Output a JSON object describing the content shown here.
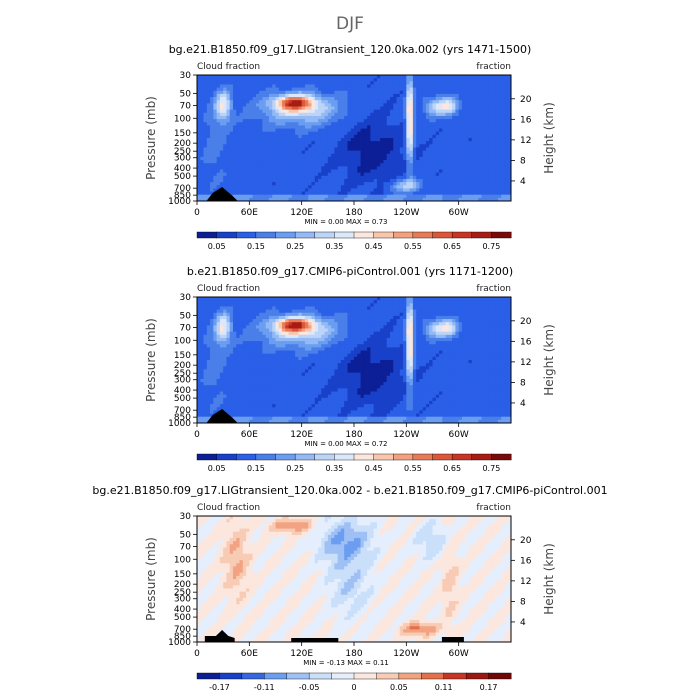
{
  "figure_title": "DJF",
  "chart_data": [
    {
      "type": "heatmap",
      "title": "bg.e21.B1850.f09_g17.LIGtransient_120.0ka.002 (yrs 1471-1500)",
      "left_label": "Cloud fraction",
      "right_label": "fraction",
      "ylabel": "Pressure (mb)",
      "ylabel_right": "Height (km)",
      "x_ticks": [
        "0",
        "60E",
        "120E",
        "180",
        "120W",
        "60W"
      ],
      "y_ticks": [
        "30",
        "50",
        "70",
        "100",
        "150",
        "200",
        "250",
        "300",
        "400",
        "500",
        "700",
        "850",
        "1000"
      ],
      "y_ticks_right": [
        "20",
        "16",
        "12",
        "8",
        "4"
      ],
      "stats": "MIN =   0.00  MAX =   0.73",
      "colorbar_labels": [
        "0.05",
        "0.15",
        "0.25",
        "0.35",
        "0.45",
        "0.55",
        "0.65",
        "0.75"
      ],
      "colorbar_colors": [
        "#0d1f96",
        "#1840c8",
        "#2a5fe8",
        "#4a7fea",
        "#6b9df0",
        "#93baf5",
        "#bcd4f8",
        "#dbe8fb",
        "#fde6dc",
        "#f9c5ad",
        "#f2a07f",
        "#e97a57",
        "#dd5637",
        "#c93523",
        "#a81c14",
        "#7a0a0a"
      ],
      "min": 0.0,
      "max": 0.73
    },
    {
      "type": "heatmap",
      "title": "b.e21.B1850.f09_g17.CMIP6-piControl.001 (yrs 1171-1200)",
      "left_label": "Cloud fraction",
      "right_label": "fraction",
      "ylabel": "Pressure (mb)",
      "ylabel_right": "Height (km)",
      "x_ticks": [
        "0",
        "60E",
        "120E",
        "180",
        "120W",
        "60W"
      ],
      "y_ticks": [
        "30",
        "50",
        "70",
        "100",
        "150",
        "200",
        "250",
        "300",
        "400",
        "500",
        "700",
        "850",
        "1000"
      ],
      "y_ticks_right": [
        "20",
        "16",
        "12",
        "8",
        "4"
      ],
      "stats": "MIN =   0.00  MAX =   0.72",
      "colorbar_labels": [
        "0.05",
        "0.15",
        "0.25",
        "0.35",
        "0.45",
        "0.55",
        "0.65",
        "0.75"
      ],
      "colorbar_colors": [
        "#0d1f96",
        "#1840c8",
        "#2a5fe8",
        "#4a7fea",
        "#6b9df0",
        "#93baf5",
        "#bcd4f8",
        "#dbe8fb",
        "#fde6dc",
        "#f9c5ad",
        "#f2a07f",
        "#e97a57",
        "#dd5637",
        "#c93523",
        "#a81c14",
        "#7a0a0a"
      ],
      "min": 0.0,
      "max": 0.72
    },
    {
      "type": "heatmap",
      "title": "bg.e21.B1850.f09_g17.LIGtransient_120.0ka.002 - b.e21.B1850.f09_g17.CMIP6-piControl.001",
      "left_label": "Cloud fraction",
      "right_label": "fraction",
      "ylabel": "Pressure (mb)",
      "ylabel_right": "Height (km)",
      "x_ticks": [
        "0",
        "60E",
        "120E",
        "180",
        "120W",
        "60W"
      ],
      "y_ticks": [
        "30",
        "50",
        "70",
        "100",
        "150",
        "200",
        "250",
        "300",
        "400",
        "500",
        "700",
        "850",
        "1000"
      ],
      "y_ticks_right": [
        "20",
        "16",
        "12",
        "8",
        "4"
      ],
      "stats": "MIN =  -0.13  MAX =   0.11",
      "colorbar_labels": [
        "-0.17",
        "-0.11",
        "-0.05",
        "0",
        "0.05",
        "0.11",
        "0.17"
      ],
      "colorbar_colors": [
        "#0d1f96",
        "#1840c8",
        "#3568e0",
        "#6b9df0",
        "#9fc0f5",
        "#cadff9",
        "#e4eefc",
        "#fbe7de",
        "#f8cbb5",
        "#f2a382",
        "#e46f4a",
        "#c93523",
        "#9c1712",
        "#6e0707"
      ],
      "min": -0.13,
      "max": 0.11
    }
  ]
}
